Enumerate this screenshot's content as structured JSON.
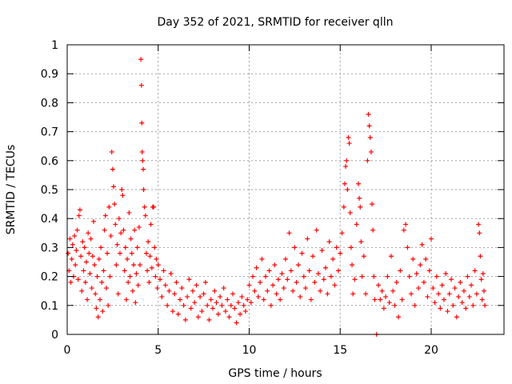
{
  "chart_data": {
    "type": "scatter",
    "title": "Day 352 of 2021, SRMTID for receiver qlln",
    "xlabel": "GPS time / hours",
    "ylabel": "SRMTID / TECUs",
    "xlim": [
      0,
      24
    ],
    "ylim": [
      0,
      1
    ],
    "xticks": [
      0,
      5,
      10,
      15,
      20
    ],
    "xtick_labels": [
      "0",
      "5",
      "10",
      "15",
      "20"
    ],
    "yticks": [
      0,
      0.1,
      0.2,
      0.3,
      0.4,
      0.5,
      0.6,
      0.7,
      0.8,
      0.9,
      1
    ],
    "ytick_labels": [
      "0",
      "0.1",
      "0.2",
      "0.3",
      "0.4",
      "0.5",
      "0.6",
      "0.7",
      "0.8",
      "0.9",
      "1"
    ],
    "grid": true,
    "marker": "+",
    "color": "#ff0000",
    "series": [
      {
        "name": "SRMTID",
        "points": [
          [
            0.05,
            0.28
          ],
          [
            0.1,
            0.22
          ],
          [
            0.15,
            0.33
          ],
          [
            0.2,
            0.18
          ],
          [
            0.25,
            0.26
          ],
          [
            0.3,
            0.31
          ],
          [
            0.35,
            0.2
          ],
          [
            0.4,
            0.34
          ],
          [
            0.45,
            0.24
          ],
          [
            0.5,
            0.29
          ],
          [
            0.55,
            0.36
          ],
          [
            0.6,
            0.19
          ],
          [
            0.65,
            0.41
          ],
          [
            0.7,
            0.43
          ],
          [
            0.75,
            0.27
          ],
          [
            0.8,
            0.15
          ],
          [
            0.85,
            0.32
          ],
          [
            0.9,
            0.22
          ],
          [
            0.95,
            0.3
          ],
          [
            1.0,
            0.18
          ],
          [
            1.05,
            0.25
          ],
          [
            1.1,
            0.12
          ],
          [
            1.15,
            0.35
          ],
          [
            1.2,
            0.28
          ],
          [
            1.25,
            0.21
          ],
          [
            1.3,
            0.33
          ],
          [
            1.35,
            0.16
          ],
          [
            1.4,
            0.27
          ],
          [
            1.45,
            0.39
          ],
          [
            1.5,
            0.24
          ],
          [
            1.55,
            0.14
          ],
          [
            1.6,
            0.09
          ],
          [
            1.65,
            0.2
          ],
          [
            1.7,
            0.06
          ],
          [
            1.75,
            0.26
          ],
          [
            1.8,
            0.12
          ],
          [
            1.85,
            0.3
          ],
          [
            1.9,
            0.18
          ],
          [
            1.95,
            0.08
          ],
          [
            2.0,
            0.22
          ],
          [
            2.05,
            0.36
          ],
          [
            2.1,
            0.41
          ],
          [
            2.15,
            0.16
          ],
          [
            2.2,
            0.28
          ],
          [
            2.25,
            0.1
          ],
          [
            2.3,
            0.44
          ],
          [
            2.35,
            0.2
          ],
          [
            2.4,
            0.34
          ],
          [
            2.45,
            0.63
          ],
          [
            2.5,
            0.57
          ],
          [
            2.55,
            0.51
          ],
          [
            2.6,
            0.45
          ],
          [
            2.65,
            0.38
          ],
          [
            2.7,
            0.24
          ],
          [
            2.75,
            0.31
          ],
          [
            2.8,
            0.14
          ],
          [
            2.85,
            0.4
          ],
          [
            2.9,
            0.28
          ],
          [
            2.95,
            0.35
          ],
          [
            3.0,
            0.5
          ],
          [
            3.05,
            0.48
          ],
          [
            3.1,
            0.36
          ],
          [
            3.15,
            0.22
          ],
          [
            3.2,
            0.3
          ],
          [
            3.25,
            0.12
          ],
          [
            3.3,
            0.26
          ],
          [
            3.35,
            0.18
          ],
          [
            3.4,
            0.42
          ],
          [
            3.45,
            0.2
          ],
          [
            3.5,
            0.33
          ],
          [
            3.55,
            0.28
          ],
          [
            3.6,
            0.15
          ],
          [
            3.65,
            0.24
          ],
          [
            3.7,
            0.36
          ],
          [
            3.75,
            0.11
          ],
          [
            3.8,
            0.21
          ],
          [
            3.85,
            0.3
          ],
          [
            3.9,
            0.17
          ],
          [
            3.95,
            0.37
          ],
          [
            4.0,
            0.24
          ],
          [
            4.05,
            0.95
          ],
          [
            4.08,
            0.86
          ],
          [
            4.1,
            0.73
          ],
          [
            4.12,
            0.63
          ],
          [
            4.15,
            0.6
          ],
          [
            4.18,
            0.57
          ],
          [
            4.2,
            0.5
          ],
          [
            4.25,
            0.44
          ],
          [
            4.3,
            0.41
          ],
          [
            4.35,
            0.28
          ],
          [
            4.4,
            0.22
          ],
          [
            4.45,
            0.32
          ],
          [
            4.5,
            0.18
          ],
          [
            4.55,
            0.27
          ],
          [
            4.6,
            0.38
          ],
          [
            4.65,
            0.23
          ],
          [
            4.7,
            0.44
          ],
          [
            4.75,
            0.44
          ],
          [
            4.8,
            0.3
          ],
          [
            4.85,
            0.2
          ],
          [
            4.9,
            0.26
          ],
          [
            4.95,
            0.16
          ],
          [
            5.0,
            0.24
          ],
          [
            5.1,
            0.19
          ],
          [
            5.2,
            0.13
          ],
          [
            5.3,
            0.22
          ],
          [
            5.4,
            0.17
          ],
          [
            5.5,
            0.1
          ],
          [
            5.6,
            0.15
          ],
          [
            5.7,
            0.21
          ],
          [
            5.8,
            0.08
          ],
          [
            5.9,
            0.14
          ],
          [
            6.0,
            0.18
          ],
          [
            6.1,
            0.07
          ],
          [
            6.2,
            0.12
          ],
          [
            6.3,
            0.16
          ],
          [
            6.4,
            0.1
          ],
          [
            6.5,
            0.05
          ],
          [
            6.6,
            0.13
          ],
          [
            6.7,
            0.19
          ],
          [
            6.8,
            0.09
          ],
          [
            6.9,
            0.15
          ],
          [
            7.0,
            0.11
          ],
          [
            7.1,
            0.17
          ],
          [
            7.2,
            0.06
          ],
          [
            7.3,
            0.13
          ],
          [
            7.4,
            0.08
          ],
          [
            7.5,
            0.14
          ],
          [
            7.6,
            0.18
          ],
          [
            7.7,
            0.1
          ],
          [
            7.8,
            0.05
          ],
          [
            7.9,
            0.12
          ],
          [
            8.0,
            0.09
          ],
          [
            8.1,
            0.15
          ],
          [
            8.2,
            0.11
          ],
          [
            8.3,
            0.07
          ],
          [
            8.4,
            0.13
          ],
          [
            8.5,
            0.1
          ],
          [
            8.6,
            0.16
          ],
          [
            8.7,
            0.08
          ],
          [
            8.8,
            0.12
          ],
          [
            8.9,
            0.06
          ],
          [
            9.0,
            0.1
          ],
          [
            9.1,
            0.14
          ],
          [
            9.2,
            0.09
          ],
          [
            9.3,
            0.04
          ],
          [
            9.4,
            0.11
          ],
          [
            9.5,
            0.07
          ],
          [
            9.6,
            0.13
          ],
          [
            9.7,
            0.1
          ],
          [
            9.8,
            0.08
          ],
          [
            9.9,
            0.12
          ],
          [
            10.0,
            0.17
          ],
          [
            10.1,
            0.11
          ],
          [
            10.2,
            0.2
          ],
          [
            10.3,
            0.15
          ],
          [
            10.4,
            0.23
          ],
          [
            10.5,
            0.13
          ],
          [
            10.6,
            0.18
          ],
          [
            10.7,
            0.26
          ],
          [
            10.8,
            0.12
          ],
          [
            10.9,
            0.2
          ],
          [
            11.0,
            0.15
          ],
          [
            11.1,
            0.22
          ],
          [
            11.2,
            0.1
          ],
          [
            11.3,
            0.17
          ],
          [
            11.4,
            0.24
          ],
          [
            11.5,
            0.14
          ],
          [
            11.6,
            0.19
          ],
          [
            11.7,
            0.12
          ],
          [
            11.8,
            0.21
          ],
          [
            11.9,
            0.16
          ],
          [
            12.0,
            0.26
          ],
          [
            12.1,
            0.19
          ],
          [
            12.2,
            0.35
          ],
          [
            12.3,
            0.22
          ],
          [
            12.4,
            0.15
          ],
          [
            12.5,
            0.3
          ],
          [
            12.6,
            0.18
          ],
          [
            12.7,
            0.24
          ],
          [
            12.8,
            0.13
          ],
          [
            12.9,
            0.28
          ],
          [
            13.0,
            0.2
          ],
          [
            13.1,
            0.16
          ],
          [
            13.2,
            0.33
          ],
          [
            13.3,
            0.22
          ],
          [
            13.4,
            0.12
          ],
          [
            13.5,
            0.27
          ],
          [
            13.6,
            0.18
          ],
          [
            13.7,
            0.36
          ],
          [
            13.8,
            0.21
          ],
          [
            13.9,
            0.15
          ],
          [
            14.0,
            0.29
          ],
          [
            14.1,
            0.19
          ],
          [
            14.2,
            0.23
          ],
          [
            14.3,
            0.14
          ],
          [
            14.4,
            0.32
          ],
          [
            14.5,
            0.2
          ],
          [
            14.6,
            0.26
          ],
          [
            14.7,
            0.17
          ],
          [
            14.8,
            0.3
          ],
          [
            14.9,
            0.22
          ],
          [
            15.0,
            0.28
          ],
          [
            15.1,
            0.35
          ],
          [
            15.2,
            0.44
          ],
          [
            15.25,
            0.52
          ],
          [
            15.3,
            0.58
          ],
          [
            15.35,
            0.6
          ],
          [
            15.4,
            0.5
          ],
          [
            15.45,
            0.68
          ],
          [
            15.5,
            0.66
          ],
          [
            15.55,
            0.42
          ],
          [
            15.6,
            0.3
          ],
          [
            15.65,
            0.24
          ],
          [
            15.7,
            0.14
          ],
          [
            15.8,
            0.19
          ],
          [
            15.9,
            0.38
          ],
          [
            16.0,
            0.52
          ],
          [
            16.05,
            0.47
          ],
          [
            16.1,
            0.44
          ],
          [
            16.15,
            0.32
          ],
          [
            16.2,
            0.2
          ],
          [
            16.3,
            0.27
          ],
          [
            16.4,
            0.14
          ],
          [
            16.5,
            0.6
          ],
          [
            16.55,
            0.76
          ],
          [
            16.6,
            0.72
          ],
          [
            16.65,
            0.68
          ],
          [
            16.7,
            0.63
          ],
          [
            16.75,
            0.45
          ],
          [
            16.8,
            0.36
          ],
          [
            16.85,
            0.2
          ],
          [
            16.9,
            0.12
          ],
          [
            17.0,
            0.0
          ],
          [
            17.1,
            0.17
          ],
          [
            17.2,
            0.12
          ],
          [
            17.3,
            0.15
          ],
          [
            17.4,
            0.09
          ],
          [
            17.5,
            0.13
          ],
          [
            17.6,
            0.2
          ],
          [
            17.7,
            0.11
          ],
          [
            17.8,
            0.27
          ],
          [
            17.9,
            0.15
          ],
          [
            18.0,
            0.1
          ],
          [
            18.1,
            0.18
          ],
          [
            18.2,
            0.06
          ],
          [
            18.3,
            0.22
          ],
          [
            18.4,
            0.12
          ],
          [
            18.5,
            0.36
          ],
          [
            18.6,
            0.38
          ],
          [
            18.7,
            0.3
          ],
          [
            18.8,
            0.2
          ],
          [
            18.9,
            0.14
          ],
          [
            19.0,
            0.26
          ],
          [
            19.1,
            0.1
          ],
          [
            19.2,
            0.21
          ],
          [
            19.3,
            0.16
          ],
          [
            19.4,
            0.24
          ],
          [
            19.5,
            0.31
          ],
          [
            19.6,
            0.18
          ],
          [
            19.7,
            0.26
          ],
          [
            19.8,
            0.13
          ],
          [
            19.9,
            0.22
          ],
          [
            20.0,
            0.33
          ],
          [
            20.1,
            0.16
          ],
          [
            20.2,
            0.11
          ],
          [
            20.3,
            0.2
          ],
          [
            20.4,
            0.14
          ],
          [
            20.5,
            0.09
          ],
          [
            20.6,
            0.17
          ],
          [
            20.7,
            0.12
          ],
          [
            20.8,
            0.21
          ],
          [
            20.9,
            0.08
          ],
          [
            21.0,
            0.14
          ],
          [
            21.1,
            0.19
          ],
          [
            21.2,
            0.1
          ],
          [
            21.3,
            0.16
          ],
          [
            21.4,
            0.06
          ],
          [
            21.5,
            0.13
          ],
          [
            21.6,
            0.18
          ],
          [
            21.7,
            0.11
          ],
          [
            21.8,
            0.15
          ],
          [
            21.9,
            0.09
          ],
          [
            22.0,
            0.2
          ],
          [
            22.1,
            0.13
          ],
          [
            22.2,
            0.17
          ],
          [
            22.3,
            0.1
          ],
          [
            22.4,
            0.22
          ],
          [
            22.5,
            0.14
          ],
          [
            22.6,
            0.38
          ],
          [
            22.65,
            0.35
          ],
          [
            22.7,
            0.27
          ],
          [
            22.75,
            0.19
          ],
          [
            22.8,
            0.12
          ],
          [
            22.85,
            0.21
          ],
          [
            22.9,
            0.15
          ],
          [
            22.95,
            0.1
          ]
        ]
      }
    ]
  }
}
